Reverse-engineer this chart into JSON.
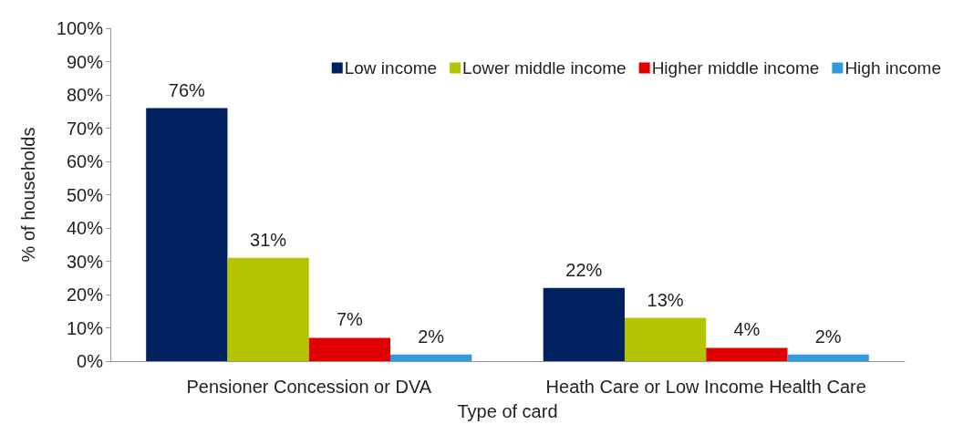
{
  "chart_data": {
    "type": "bar",
    "xlabel": "Type of card",
    "ylabel": "% of households",
    "categories": [
      "Pensioner Concession or DVA",
      "Heath Care or Low Income Health Care"
    ],
    "series": [
      {
        "name": "Low income",
        "color": "#002060",
        "values": [
          76,
          22
        ],
        "value_labels": [
          "76%",
          "22%"
        ]
      },
      {
        "name": "Lower middle income",
        "color": "#b5c400",
        "values": [
          31,
          13
        ],
        "value_labels": [
          "31%",
          "13%"
        ]
      },
      {
        "name": "Higher middle income",
        "color": "#e00000",
        "values": [
          7,
          4
        ],
        "value_labels": [
          "7%",
          "4%"
        ]
      },
      {
        "name": "High income",
        "color": "#3399dd",
        "values": [
          2,
          2
        ],
        "value_labels": [
          "2%",
          "2%"
        ]
      }
    ],
    "ylim": [
      0,
      100
    ],
    "yticks": [
      {
        "value": 0,
        "label": "0%"
      },
      {
        "value": 10,
        "label": "10%"
      },
      {
        "value": 20,
        "label": "20%"
      },
      {
        "value": 30,
        "label": "30%"
      },
      {
        "value": 40,
        "label": "40%"
      },
      {
        "value": 50,
        "label": "50%"
      },
      {
        "value": 60,
        "label": "60%"
      },
      {
        "value": 70,
        "label": "70%"
      },
      {
        "value": 80,
        "label": "80%"
      },
      {
        "value": 90,
        "label": "90%"
      },
      {
        "value": 100,
        "label": "100%"
      }
    ],
    "legend": "top right",
    "grid": false
  }
}
